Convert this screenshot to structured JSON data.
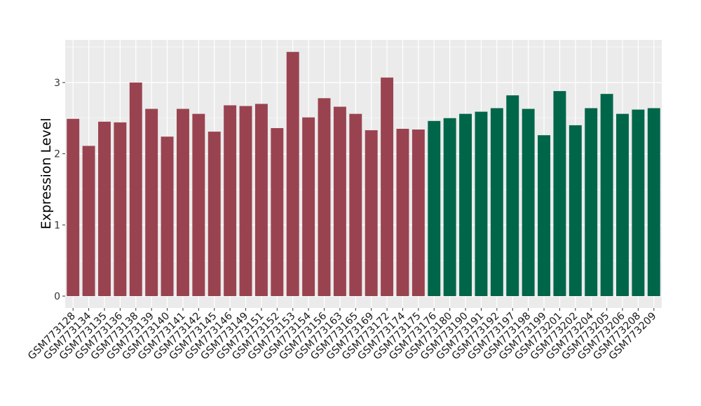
{
  "chart_data": {
    "type": "bar",
    "title": "",
    "xlabel": "",
    "ylabel": "Expression Level",
    "ylim": [
      -0.18,
      3.6
    ],
    "yticks": [
      0,
      1,
      2,
      3
    ],
    "grid": true,
    "legend": "none",
    "categories": [
      "GSM773128",
      "GSM773134",
      "GSM773135",
      "GSM773136",
      "GSM773138",
      "GSM773139",
      "GSM773140",
      "GSM773141",
      "GSM773142",
      "GSM773145",
      "GSM773146",
      "GSM773149",
      "GSM773151",
      "GSM773152",
      "GSM773153",
      "GSM773154",
      "GSM773156",
      "GSM773163",
      "GSM773165",
      "GSM773169",
      "GSM773172",
      "GSM773174",
      "GSM773175",
      "GSM773176",
      "GSM773180",
      "GSM773190",
      "GSM773191",
      "GSM773192",
      "GSM773197",
      "GSM773198",
      "GSM773199",
      "GSM773201",
      "GSM773202",
      "GSM773204",
      "GSM773205",
      "GSM773206",
      "GSM773208",
      "GSM773209"
    ],
    "values": [
      2.49,
      2.11,
      2.45,
      2.44,
      3.0,
      2.63,
      2.24,
      2.63,
      2.56,
      2.31,
      2.68,
      2.67,
      2.7,
      2.36,
      3.43,
      2.51,
      2.78,
      2.66,
      2.56,
      2.33,
      3.07,
      2.35,
      2.34,
      2.46,
      2.5,
      2.56,
      2.59,
      2.64,
      2.82,
      2.63,
      2.26,
      2.88,
      2.4,
      2.64,
      2.84,
      2.56,
      2.62,
      2.64
    ],
    "groups": [
      0,
      0,
      0,
      0,
      0,
      0,
      0,
      0,
      0,
      0,
      0,
      0,
      0,
      0,
      0,
      0,
      0,
      0,
      0,
      0,
      0,
      0,
      0,
      1,
      1,
      1,
      1,
      1,
      1,
      1,
      1,
      1,
      1,
      1,
      1,
      1,
      1,
      1
    ],
    "group_colors": [
      "#9A4350",
      "#00664A"
    ]
  }
}
